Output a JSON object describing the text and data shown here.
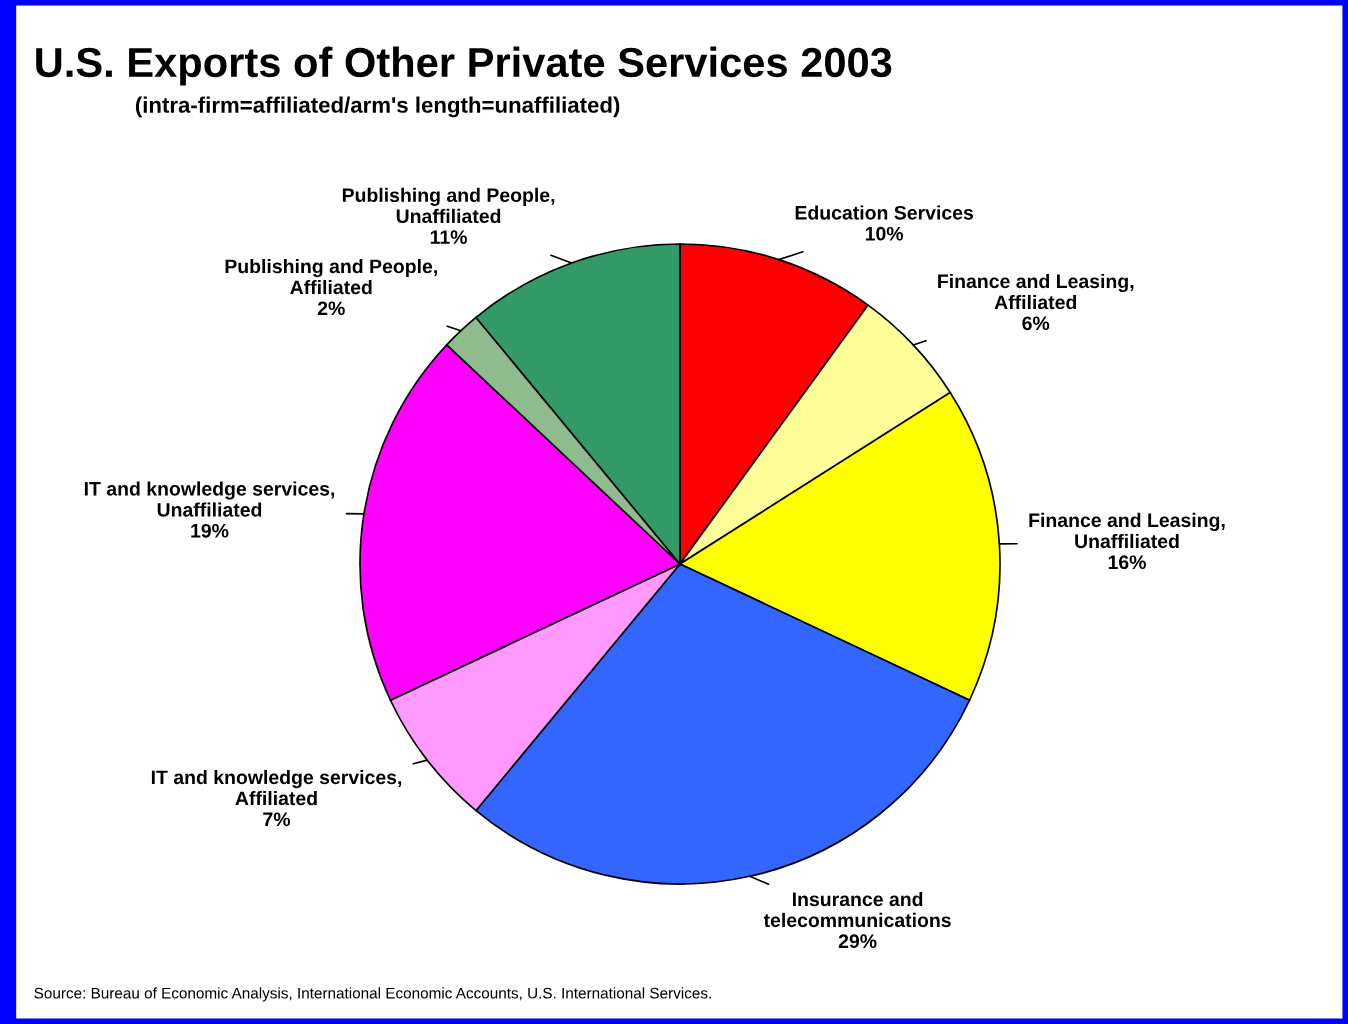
{
  "chart_data": {
    "type": "pie",
    "title": "U.S. Exports of Other Private Services 2003",
    "subtitle": "(intra-firm=affiliated/arm's length=unaffiliated)",
    "categories": [
      "Education Services",
      "Finance and Leasing,\nAffiliated",
      "Finance and Leasing,\nUnaffiliated",
      "Insurance and\ntelecommunications",
      "IT and knowledge services,\nAffiliated",
      "IT and knowledge services,\nUnaffiliated",
      "Publishing and People,\nAffiliated",
      "Publishing and People,\nUnaffiliated"
    ],
    "values": [
      10,
      6,
      16,
      29,
      7,
      19,
      2,
      11
    ],
    "value_labels": [
      "10%",
      "6%",
      "16%",
      "29%",
      "7%",
      "19%",
      "2%",
      "11%"
    ],
    "colors": [
      "#ff0000",
      "#ffff99",
      "#ffff00",
      "#3366ff",
      "#ff99ff",
      "#ff00ff",
      "#8fbc8f",
      "#339966"
    ],
    "annotations": [
      "Source: Bureau of Economic Analysis, International Economic Accounts, U.S. International Services."
    ]
  }
}
